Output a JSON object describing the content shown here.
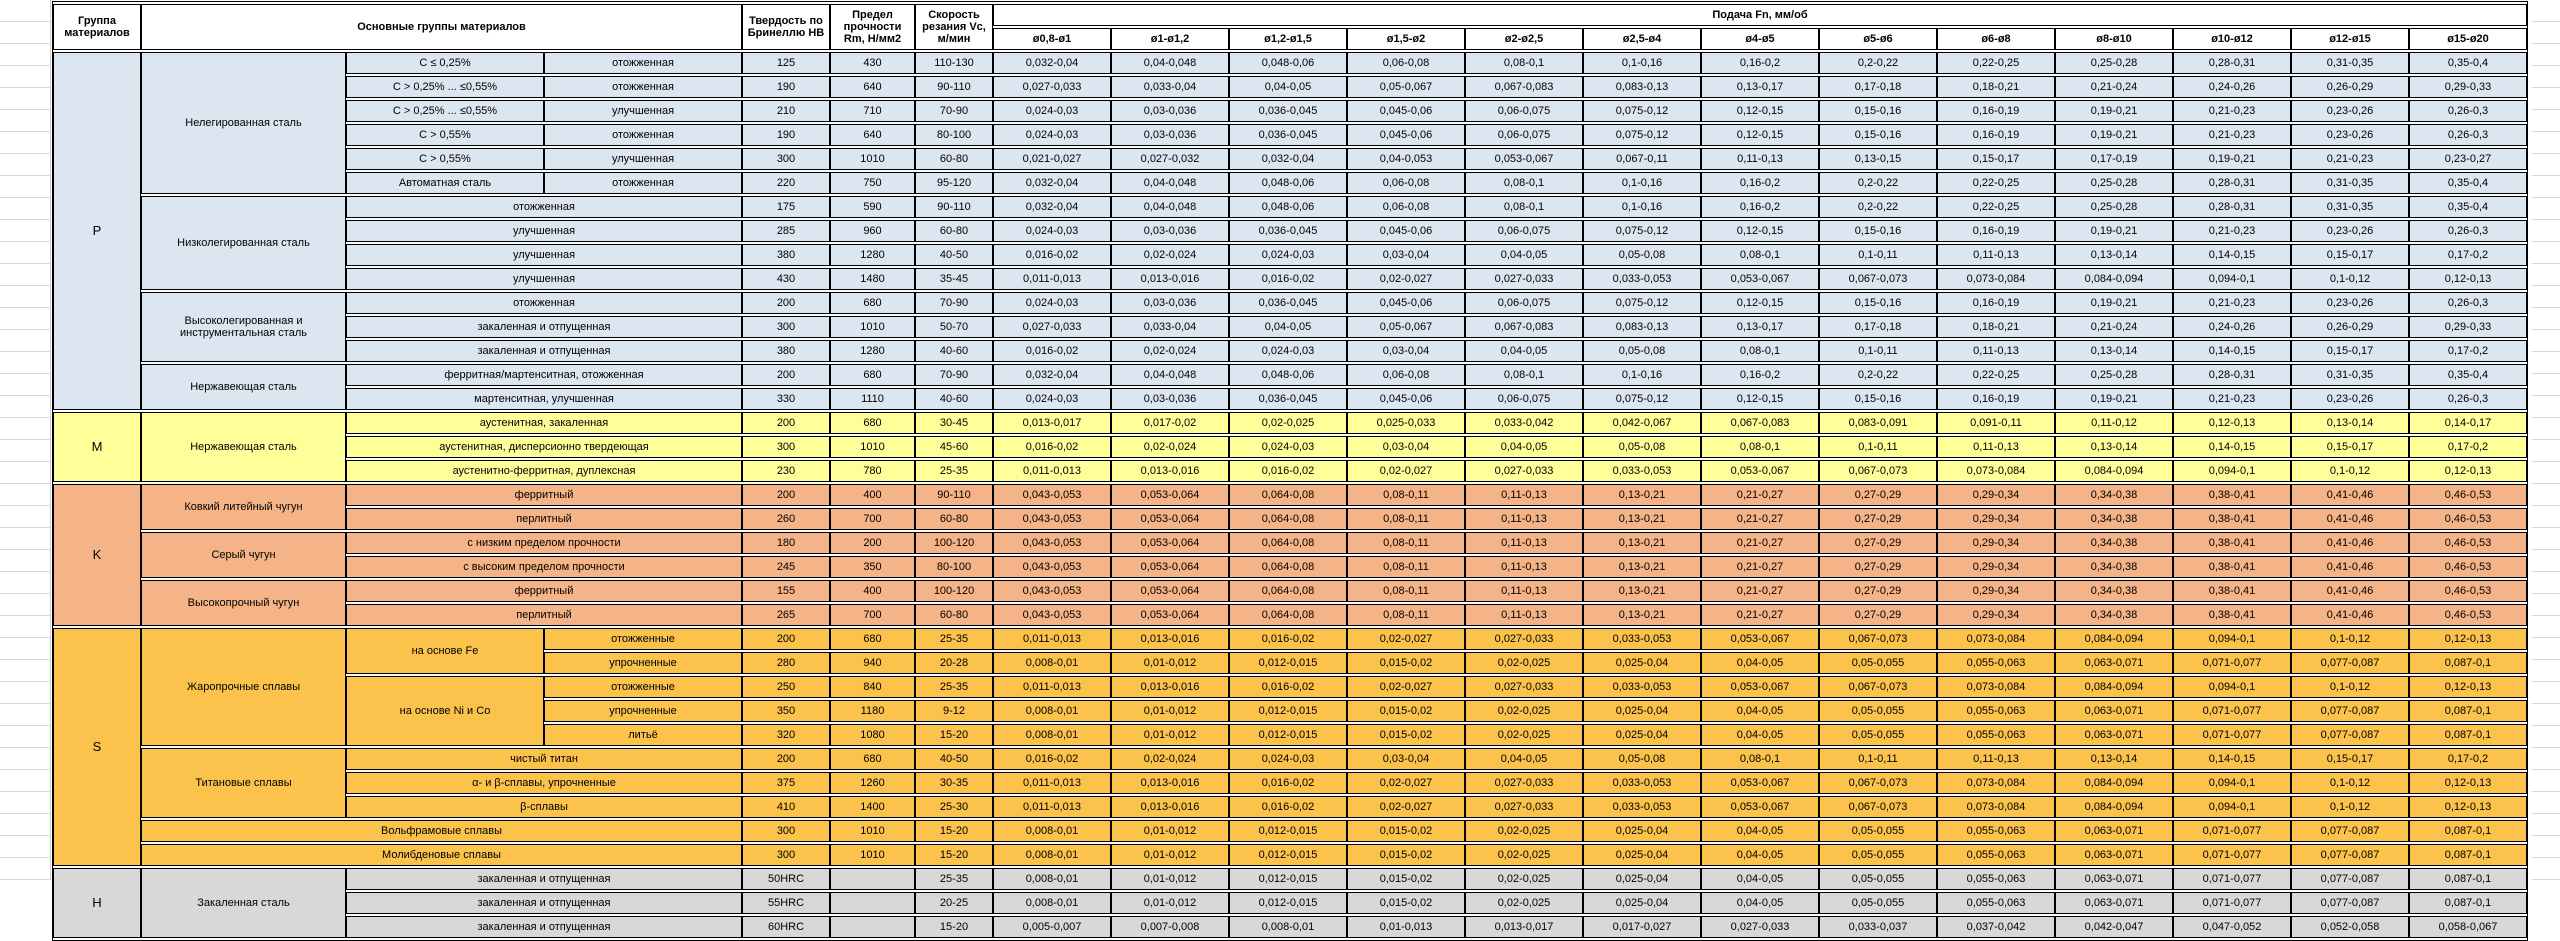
{
  "header": {
    "col_group": "Группа материалов",
    "col_main": "Основные группы материалов",
    "col_hardness": "Твердость по Бринеллю HB",
    "col_strength": "Предел прочности Rm, Н/мм2",
    "col_speed": "Скорость резания Vc, м/мин",
    "feed_title": "Подача Fn, мм/об",
    "diameters": [
      "ø0,8-ø1",
      "ø1-ø1,2",
      "ø1,2-ø1,5",
      "ø1,5-ø2",
      "ø2-ø2,5",
      "ø2,5-ø4",
      "ø4-ø5",
      "ø5-ø6",
      "ø6-ø8",
      "ø8-ø10",
      "ø10-ø12",
      "ø12-ø15",
      "ø15-ø20"
    ]
  },
  "colors": {
    "group_P": "#DCE6F1",
    "group_M": "#FFFF99",
    "group_K": "#F5B488",
    "group_S": "#FBC34B",
    "group_H": "#D8D8D8",
    "border": "#000000",
    "header_bg": "#FFFFFF"
  },
  "feed_patterns": {
    "A": [
      "0,032-0,04",
      "0,04-0,048",
      "0,048-0,06",
      "0,06-0,08",
      "0,08-0,1",
      "0,1-0,16",
      "0,16-0,2",
      "0,2-0,22",
      "0,22-0,25",
      "0,25-0,28",
      "0,28-0,31",
      "0,31-0,35",
      "0,35-0,4"
    ],
    "B": [
      "0,027-0,033",
      "0,033-0,04",
      "0,04-0,05",
      "0,05-0,067",
      "0,067-0,083",
      "0,083-0,13",
      "0,13-0,17",
      "0,17-0,18",
      "0,18-0,21",
      "0,21-0,24",
      "0,24-0,26",
      "0,26-0,29",
      "0,29-0,33"
    ],
    "C": [
      "0,024-0,03",
      "0,03-0,036",
      "0,036-0,045",
      "0,045-0,06",
      "0,06-0,075",
      "0,075-0,12",
      "0,12-0,15",
      "0,15-0,16",
      "0,16-0,19",
      "0,19-0,21",
      "0,21-0,23",
      "0,23-0,26",
      "0,26-0,3"
    ],
    "D": [
      "0,021-0,027",
      "0,027-0,032",
      "0,032-0,04",
      "0,04-0,053",
      "0,053-0,067",
      "0,067-0,11",
      "0,11-0,13",
      "0,13-0,15",
      "0,15-0,17",
      "0,17-0,19",
      "0,19-0,21",
      "0,21-0,23",
      "0,23-0,27"
    ],
    "E": [
      "0,016-0,02",
      "0,02-0,024",
      "0,024-0,03",
      "0,03-0,04",
      "0,04-0,05",
      "0,05-0,08",
      "0,08-0,1",
      "0,1-0,11",
      "0,11-0,13",
      "0,13-0,14",
      "0,14-0,15",
      "0,15-0,17",
      "0,17-0,2"
    ],
    "F": [
      "0,011-0,013",
      "0,013-0,016",
      "0,016-0,02",
      "0,02-0,027",
      "0,027-0,033",
      "0,033-0,053",
      "0,053-0,067",
      "0,067-0,073",
      "0,073-0,084",
      "0,084-0,094",
      "0,094-0,1",
      "0,1-0,12",
      "0,12-0,13"
    ],
    "G": [
      "0,013-0,017",
      "0,017-0,02",
      "0,02-0,025",
      "0,025-0,033",
      "0,033-0,042",
      "0,042-0,067",
      "0,067-0,083",
      "0,083-0,091",
      "0,091-0,11",
      "0,11-0,12",
      "0,12-0,13",
      "0,13-0,14",
      "0,14-0,17"
    ],
    "K": [
      "0,043-0,053",
      "0,053-0,064",
      "0,064-0,08",
      "0,08-0,11",
      "0,11-0,13",
      "0,13-0,21",
      "0,21-0,27",
      "0,27-0,29",
      "0,29-0,34",
      "0,34-0,38",
      "0,38-0,41",
      "0,41-0,46",
      "0,46-0,53"
    ],
    "S": [
      "0,008-0,01",
      "0,01-0,012",
      "0,012-0,015",
      "0,015-0,02",
      "0,02-0,025",
      "0,025-0,04",
      "0,04-0,05",
      "0,05-0,055",
      "0,055-0,063",
      "0,063-0,071",
      "0,071-0,077",
      "0,077-0,087",
      "0,087-0,1"
    ],
    "H": [
      "0,005-0,007",
      "0,007-0,008",
      "0,008-0,01",
      "0,01-0,013",
      "0,013-0,017",
      "0,017-0,027",
      "0,027-0,033",
      "0,033-0,037",
      "0,037-0,042",
      "0,042-0,047",
      "0,047-0,052",
      "0,052-0,058",
      "0,058-0,067"
    ]
  },
  "rows": [
    {
      "g": [
        "P",
        15,
        "group_P"
      ],
      "m": [
        "Нелегированная сталь",
        6
      ],
      "s": "C ≤ 0,25%",
      "t": "отожженная",
      "hb": "125",
      "rm": "430",
      "vc": "110-130",
      "f": "A"
    },
    {
      "s": "C > 0,25% ... ≤0,55%",
      "t": "отожженная",
      "hb": "190",
      "rm": "640",
      "vc": "90-110",
      "f": "B"
    },
    {
      "s": "C > 0,25% ... ≤0,55%",
      "t": "улучшенная",
      "hb": "210",
      "rm": "710",
      "vc": "70-90",
      "f": "C"
    },
    {
      "s": "C > 0,55%",
      "t": "отожженная",
      "hb": "190",
      "rm": "640",
      "vc": "80-100",
      "f": "C"
    },
    {
      "s": "C > 0,55%",
      "t": "улучшенная",
      "hb": "300",
      "rm": "1010",
      "vc": "60-80",
      "f": "D"
    },
    {
      "s": "Автоматная сталь",
      "t": "отожженная",
      "hb": "220",
      "rm": "750",
      "vc": "95-120",
      "f": "A"
    },
    {
      "m": [
        "Низколегированная сталь",
        4
      ],
      "st": "отожженная",
      "hb": "175",
      "rm": "590",
      "vc": "90-110",
      "f": "A"
    },
    {
      "st": "улучшенная",
      "hb": "285",
      "rm": "960",
      "vc": "60-80",
      "f": "C"
    },
    {
      "st": "улучшенная",
      "hb": "380",
      "rm": "1280",
      "vc": "40-50",
      "f": "E"
    },
    {
      "st": "улучшенная",
      "hb": "430",
      "rm": "1480",
      "vc": "35-45",
      "f": "F"
    },
    {
      "m": [
        "Высоколегированная и инструментальная сталь",
        3
      ],
      "st": "отожженная",
      "hb": "200",
      "rm": "680",
      "vc": "70-90",
      "f": "C"
    },
    {
      "st": "закаленная и отпущенная",
      "hb": "300",
      "rm": "1010",
      "vc": "50-70",
      "f": "B"
    },
    {
      "st": "закаленная и отпущенная",
      "hb": "380",
      "rm": "1280",
      "vc": "40-60",
      "f": "E"
    },
    {
      "m": [
        "Нержавеющая сталь",
        2
      ],
      "st": "ферритная/мартенситная, отожженная",
      "hb": "200",
      "rm": "680",
      "vc": "70-90",
      "f": "A"
    },
    {
      "st": "мартенситная, улучшенная",
      "hb": "330",
      "rm": "1110",
      "vc": "40-60",
      "f": "C"
    },
    {
      "g": [
        "M",
        3,
        "group_M"
      ],
      "m": [
        "Нержавеющая сталь",
        3
      ],
      "st": "аустенитная, закаленная",
      "hb": "200",
      "rm": "680",
      "vc": "30-45",
      "f": "G"
    },
    {
      "st": "аустенитная, дисперсионно твердеющая",
      "hb": "300",
      "rm": "1010",
      "vc": "45-60",
      "f": "E"
    },
    {
      "st": "аустенитно-ферритная, дуплексная",
      "hb": "230",
      "rm": "780",
      "vc": "25-35",
      "f": "F"
    },
    {
      "g": [
        "K",
        6,
        "group_K"
      ],
      "m": [
        "Ковкий литейный чугун",
        2
      ],
      "st": "ферритный",
      "hb": "200",
      "rm": "400",
      "vc": "90-110",
      "f": "K"
    },
    {
      "st": "перлитный",
      "hb": "260",
      "rm": "700",
      "vc": "60-80",
      "f": "K"
    },
    {
      "m": [
        "Серый чугун",
        2
      ],
      "st": "с низким пределом прочности",
      "hb": "180",
      "rm": "200",
      "vc": "100-120",
      "f": "K"
    },
    {
      "st": "с высоким пределом прочности",
      "hb": "245",
      "rm": "350",
      "vc": "80-100",
      "f": "K"
    },
    {
      "m": [
        "Высокопрочный чугун",
        2
      ],
      "st": "ферритный",
      "hb": "155",
      "rm": "400",
      "vc": "100-120",
      "f": "K"
    },
    {
      "st": "перлитный",
      "hb": "265",
      "rm": "700",
      "vc": "60-80",
      "f": "K"
    },
    {
      "g": [
        "S",
        10,
        "group_S"
      ],
      "m": [
        "Жаропрочные сплавы",
        5
      ],
      "s2": [
        "на основе Fe",
        2
      ],
      "t": "отожженные",
      "hb": "200",
      "rm": "680",
      "vc": "25-35",
      "f": "F"
    },
    {
      "t": "упрочненные",
      "hb": "280",
      "rm": "940",
      "vc": "20-28",
      "f": "S"
    },
    {
      "s2": [
        "на основе Ni и Co",
        3
      ],
      "t": "отожженные",
      "hb": "250",
      "rm": "840",
      "vc": "25-35",
      "f": "F"
    },
    {
      "t": "упрочненные",
      "hb": "350",
      "rm": "1180",
      "vc": "9-12",
      "f": "S"
    },
    {
      "t": "литьё",
      "hb": "320",
      "rm": "1080",
      "vc": "15-20",
      "f": "S"
    },
    {
      "m": [
        "Титановые сплавы",
        3
      ],
      "st": "чистый титан",
      "hb": "200",
      "rm": "680",
      "vc": "40-50",
      "f": "E"
    },
    {
      "st": "α- и β-сплавы, упрочненные",
      "hb": "375",
      "rm": "1260",
      "vc": "30-35",
      "f": "F"
    },
    {
      "st": "β-сплавы",
      "hb": "410",
      "rm": "1400",
      "vc": "25-30",
      "f": "F"
    },
    {
      "mst": "Вольфрамовые сплавы",
      "hb": "300",
      "rm": "1010",
      "vc": "15-20",
      "f": "S"
    },
    {
      "mst": "Молибденовые сплавы",
      "hb": "300",
      "rm": "1010",
      "vc": "15-20",
      "f": "S"
    },
    {
      "g": [
        "H",
        3,
        "group_H"
      ],
      "m": [
        "Закаленная сталь",
        3
      ],
      "st": "закаленная и отпущенная",
      "hb": "50HRC",
      "rm": "",
      "vc": "25-35",
      "f": "S"
    },
    {
      "st": "закаленная и отпущенная",
      "hb": "55HRC",
      "rm": "",
      "vc": "20-25",
      "f": "S"
    },
    {
      "st": "закаленная и отпущенная",
      "hb": "60HRC",
      "rm": "",
      "vc": "15-20",
      "f": "H"
    }
  ]
}
